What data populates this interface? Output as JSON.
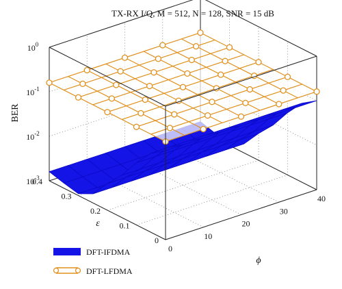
{
  "chart_data": {
    "type": "surface3d",
    "title": "TX-RX I/Q, M = 512, N = 128, SNR = 15 dB",
    "xlabel": "ε",
    "ylabel": "ϕ",
    "zlabel": "BER",
    "xlim": [
      0,
      0.4
    ],
    "ylim": [
      0,
      40
    ],
    "zlim": [
      0.001,
      1
    ],
    "zscale": "log",
    "grid": true,
    "legend_position": "bottom-left",
    "x_ticks": [
      "0",
      "0.1",
      "0.2",
      "0.3",
      "0.4"
    ],
    "y_ticks": [
      "0",
      "10",
      "20",
      "30",
      "40"
    ],
    "z_ticks": [
      {
        "base": "10",
        "exp": "-3"
      },
      {
        "base": "10",
        "exp": "-2"
      },
      {
        "base": "10",
        "exp": "-1"
      },
      {
        "base": "10",
        "exp": "0"
      }
    ],
    "x": [
      0,
      0.05,
      0.1,
      0.15,
      0.2,
      0.25,
      0.3,
      0.35,
      0.4
    ],
    "y": [
      0,
      5,
      10,
      15,
      20,
      25,
      30,
      35,
      40
    ],
    "series": [
      {
        "name": "DFT-IFDMA",
        "color": "#1414e6",
        "style": "filled-surface",
        "z": [
          [
            0.1,
            0.1,
            0.1,
            0.1,
            0.1,
            0.1,
            0.1,
            0.1,
            0.1
          ],
          [
            0.06,
            0.06,
            0.06,
            0.06,
            0.06,
            0.06,
            0.06,
            0.06,
            0.06
          ],
          [
            0.025,
            0.025,
            0.025,
            0.025,
            0.025,
            0.025,
            0.025,
            0.025,
            0.025
          ],
          [
            0.009,
            0.009,
            0.009,
            0.009,
            0.009,
            0.009,
            0.009,
            0.009,
            0.009
          ],
          [
            0.004,
            0.004,
            0.004,
            0.004,
            0.004,
            0.004,
            0.004,
            0.004,
            0.004
          ],
          [
            0.0016,
            0.0016,
            0.0016,
            0.0016,
            0.0016,
            0.0016,
            0.0016,
            0.0016,
            0.0016
          ],
          [
            0.0011,
            0.0011,
            0.0011,
            0.0011,
            0.0011,
            0.0011,
            0.0011,
            0.0011,
            0.0011
          ],
          [
            0.0013,
            0.0013,
            0.0013,
            0.0013,
            0.0013,
            0.0013,
            0.0013,
            0.0013,
            0.0013
          ],
          [
            0.0016,
            0.0016,
            0.0016,
            0.0016,
            0.0016,
            0.0016,
            0.0016,
            0.0016,
            0.0016
          ]
        ]
      },
      {
        "name": "DFT-LFDMA",
        "color": "#e0901c",
        "style": "mesh-with-circle-markers",
        "z": [
          [
            0.16,
            0.16,
            0.16,
            0.16,
            0.16,
            0.16,
            0.16,
            0.16,
            0.16
          ],
          [
            0.16,
            0.16,
            0.16,
            0.16,
            0.16,
            0.16,
            0.16,
            0.16,
            0.16
          ],
          [
            0.16,
            0.16,
            0.16,
            0.16,
            0.16,
            0.16,
            0.16,
            0.16,
            0.16
          ],
          [
            0.16,
            0.16,
            0.16,
            0.16,
            0.16,
            0.16,
            0.16,
            0.16,
            0.16
          ],
          [
            0.16,
            0.16,
            0.16,
            0.16,
            0.16,
            0.16,
            0.16,
            0.16,
            0.16
          ],
          [
            0.16,
            0.16,
            0.16,
            0.16,
            0.16,
            0.16,
            0.16,
            0.16,
            0.16
          ],
          [
            0.16,
            0.16,
            0.16,
            0.16,
            0.16,
            0.16,
            0.16,
            0.16,
            0.16
          ],
          [
            0.16,
            0.16,
            0.16,
            0.16,
            0.16,
            0.16,
            0.16,
            0.16,
            0.16
          ],
          [
            0.16,
            0.16,
            0.16,
            0.16,
            0.16,
            0.16,
            0.16,
            0.16,
            0.16
          ]
        ]
      }
    ]
  }
}
